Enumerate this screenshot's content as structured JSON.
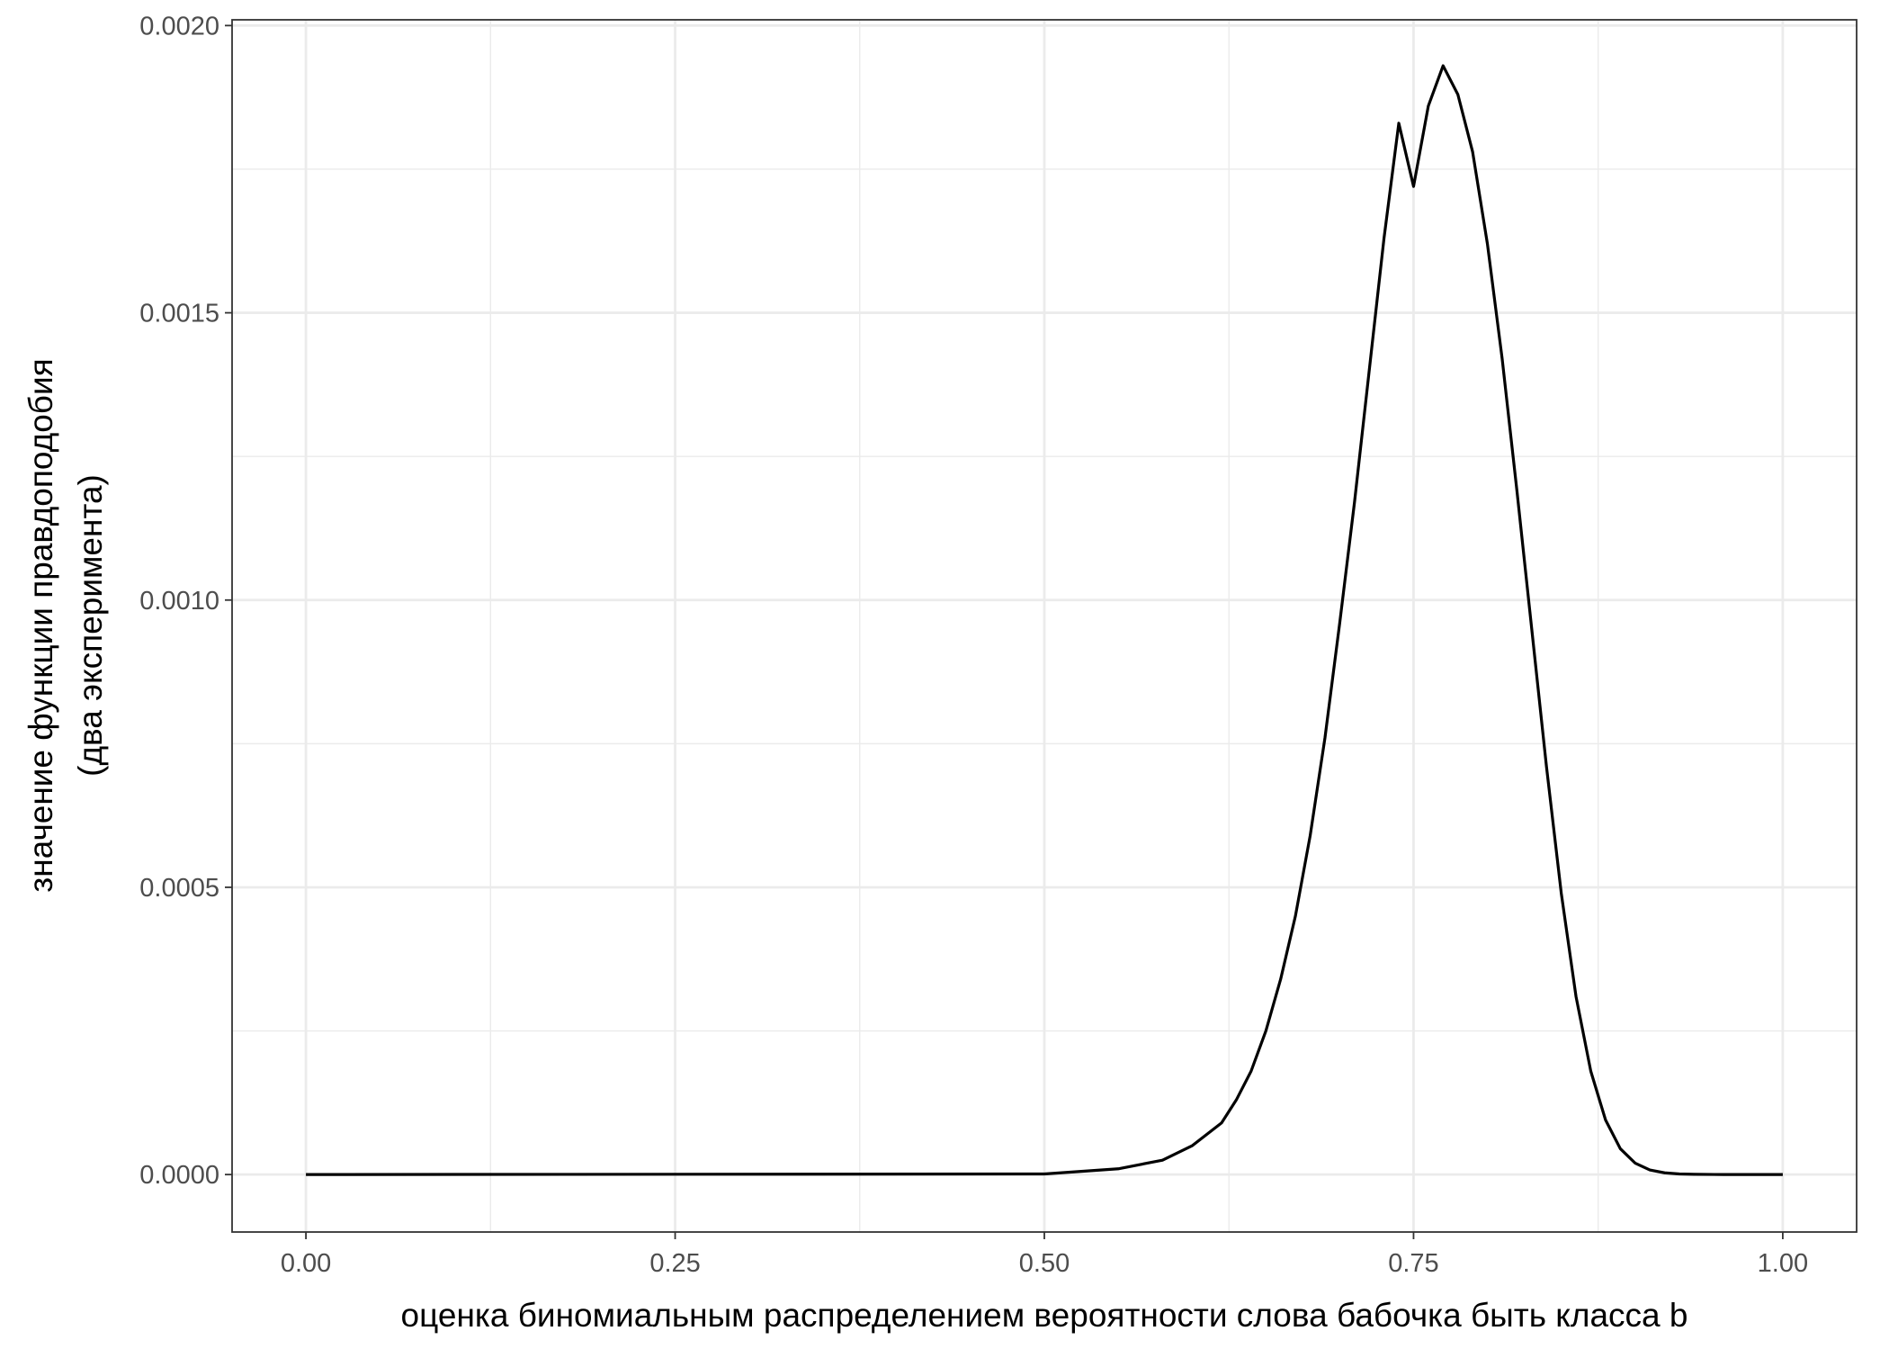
{
  "chart_data": {
    "type": "line",
    "title": "",
    "xlabel": "оценка биномиальным распределением вероятности слова бабочка быть класса b",
    "ylabel_lines": [
      "значение функции правдоподобия",
      "(два эксперимента)"
    ],
    "xlim": [
      -0.05,
      1.05
    ],
    "ylim": [
      -0.0001,
      0.00201
    ],
    "x_ticks": [
      {
        "value": 0.0,
        "label": "0.00"
      },
      {
        "value": 0.25,
        "label": "0.25"
      },
      {
        "value": 0.5,
        "label": "0.50"
      },
      {
        "value": 0.75,
        "label": "0.75"
      },
      {
        "value": 1.0,
        "label": "1.00"
      }
    ],
    "y_ticks": [
      {
        "value": 0.0,
        "label": "0.0000"
      },
      {
        "value": 0.0005,
        "label": "0.0005"
      },
      {
        "value": 0.001,
        "label": "0.0010"
      },
      {
        "value": 0.0015,
        "label": "0.0015"
      },
      {
        "value": 0.002,
        "label": "0.0020"
      }
    ],
    "x_minor_ticks": [
      0.125,
      0.375,
      0.625,
      0.875
    ],
    "y_minor_ticks": [
      0.00025,
      0.00075,
      0.00125,
      0.00175
    ],
    "grid": true,
    "line_color": "#000000",
    "series": [
      {
        "x": [
          0.0,
          0.5,
          0.55,
          0.58,
          0.6,
          0.62,
          0.63,
          0.64,
          0.65,
          0.66,
          0.67,
          0.68,
          0.69,
          0.7,
          0.71,
          0.72,
          0.73,
          0.74,
          0.75,
          0.76,
          0.77,
          0.78,
          0.79,
          0.8,
          0.81,
          0.82,
          0.83,
          0.84,
          0.85,
          0.86,
          0.87,
          0.88,
          0.89,
          0.9,
          0.91,
          0.92,
          0.93,
          0.94,
          0.96,
          1.0
        ],
        "y": [
          0.0,
          1e-06,
          1e-05,
          2.5e-05,
          5e-05,
          9e-05,
          0.00013,
          0.00018,
          0.00025,
          0.00034,
          0.00045,
          0.00059,
          0.00076,
          0.00096,
          0.00117,
          0.0014,
          0.00163,
          0.00183,
          0.00172,
          0.00186,
          0.00193,
          0.00188,
          0.00178,
          0.00162,
          0.00142,
          0.00119,
          0.00095,
          0.00071,
          0.00049,
          0.00031,
          0.00018,
          9.5e-05,
          4.5e-05,
          2e-05,
          8e-06,
          3e-06,
          1e-06,
          4e-07,
          0.0,
          0.0
        ]
      }
    ]
  }
}
